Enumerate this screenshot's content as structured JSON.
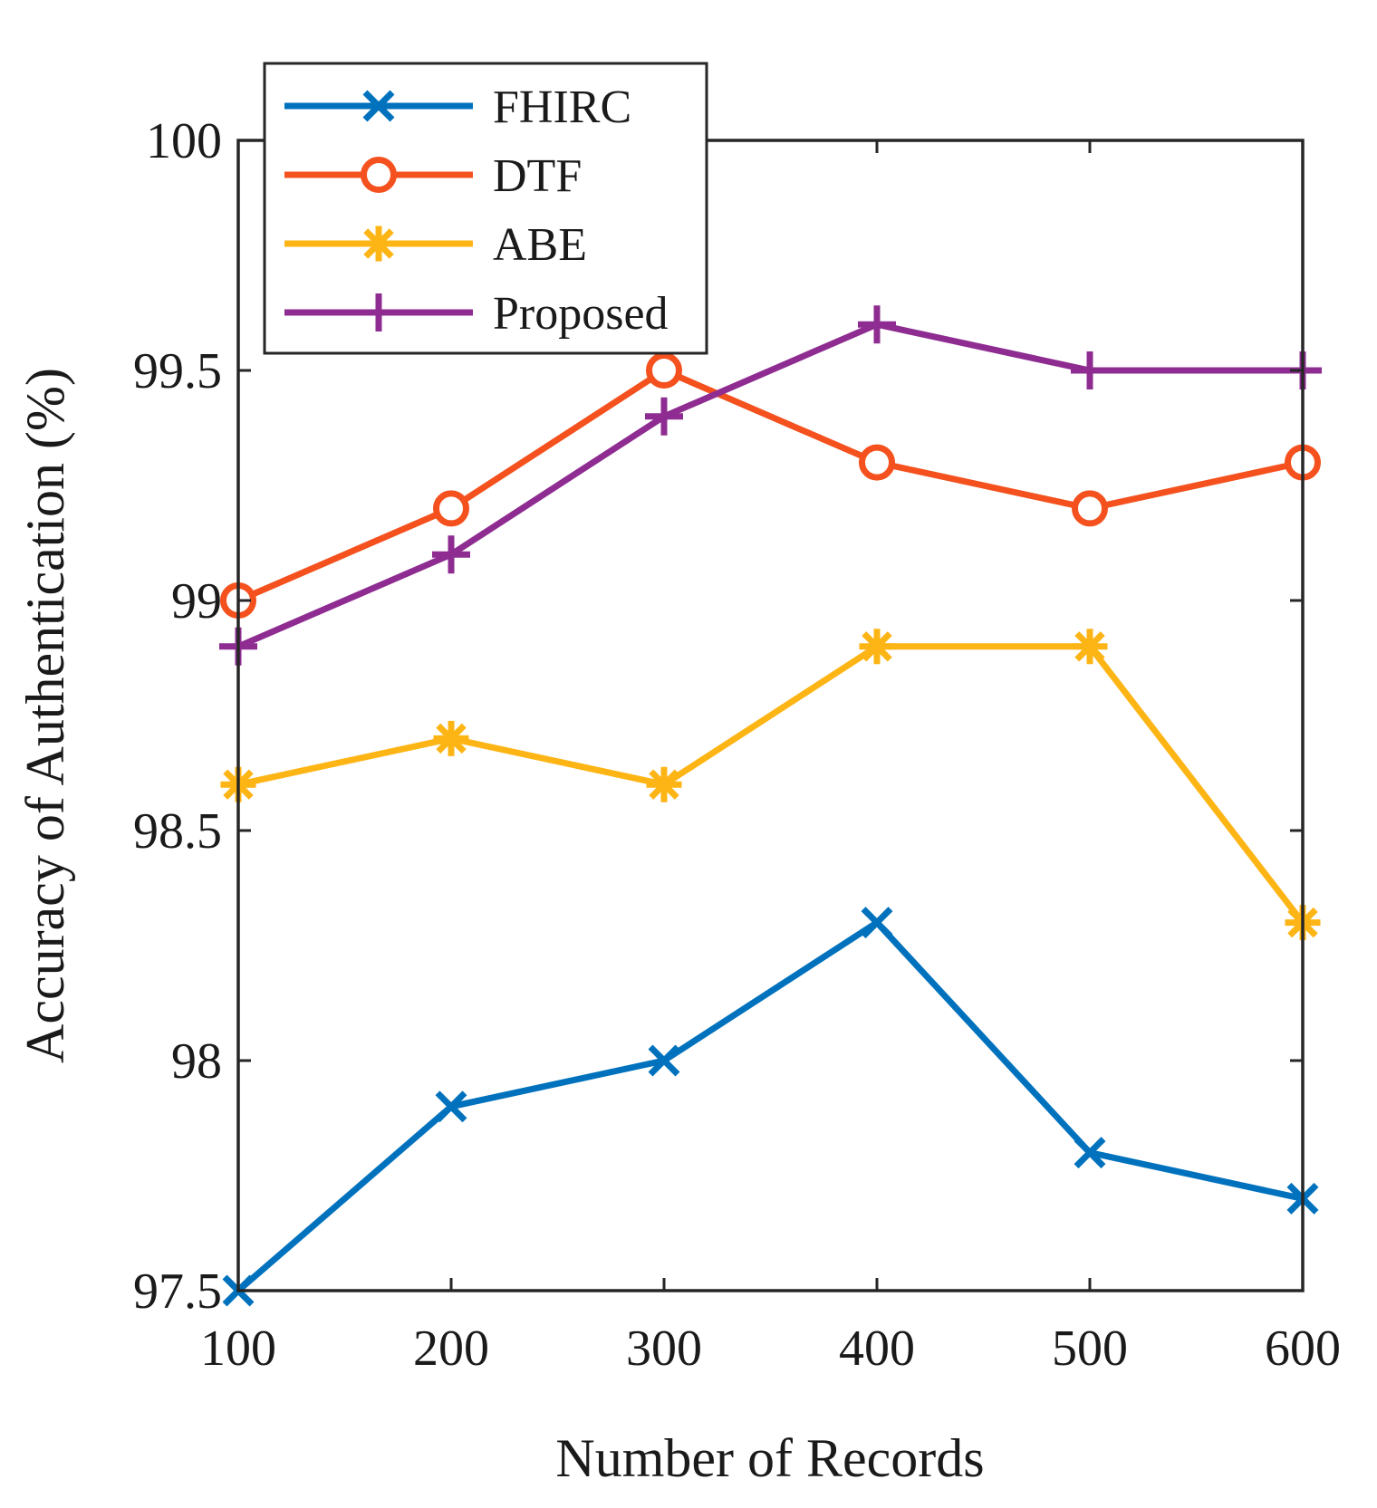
{
  "chart_data": {
    "type": "line",
    "xlabel": "Number of Records",
    "ylabel": "Accuracy of Authentication (%)",
    "x": [
      100,
      200,
      300,
      400,
      500,
      600
    ],
    "xlim": [
      100,
      600
    ],
    "ylim": [
      97.5,
      100
    ],
    "xticks": [
      "100",
      "200",
      "300",
      "400",
      "500",
      "600"
    ],
    "yticks": [
      "97.5",
      "98",
      "98.5",
      "99",
      "99.5",
      "100"
    ],
    "grid": false,
    "legend_position": "top-left",
    "series": [
      {
        "name": "FHIRC",
        "color": "#0072BD",
        "marker": "x",
        "values": [
          97.5,
          97.9,
          98.0,
          98.3,
          97.8,
          97.7
        ]
      },
      {
        "name": "DTF",
        "color": "#F4511E",
        "marker": "circle",
        "values": [
          99.0,
          99.2,
          99.5,
          99.3,
          99.2,
          99.3
        ]
      },
      {
        "name": "ABE",
        "color": "#FDB515",
        "marker": "asterisk",
        "values": [
          98.6,
          98.7,
          98.6,
          98.9,
          98.9,
          98.3
        ]
      },
      {
        "name": "Proposed",
        "color": "#8E2C91",
        "marker": "plus",
        "values": [
          98.9,
          99.1,
          99.4,
          99.6,
          99.5,
          99.5
        ]
      }
    ]
  }
}
